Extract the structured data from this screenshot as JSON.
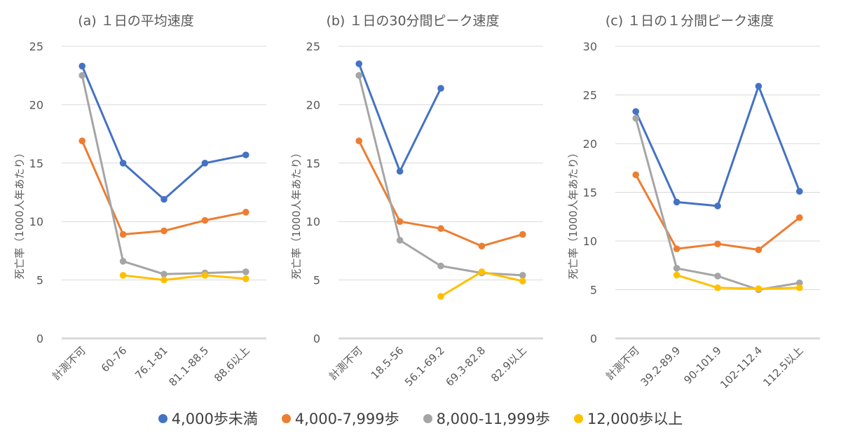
{
  "chart_data": [
    {
      "type": "line",
      "title": "(a) １日の平均速度",
      "ylabel": "死亡率（1000人年あたり）",
      "ylim": [
        0,
        25
      ],
      "yticks": [
        0,
        5,
        10,
        15,
        20,
        25
      ],
      "categories": [
        "計測不可",
        "60-76",
        "76.1-81",
        "81.1-88.5",
        "88.6以上"
      ],
      "series": [
        {
          "name": "4,000歩未満",
          "values": [
            23.3,
            15.0,
            11.9,
            15.0,
            15.7
          ]
        },
        {
          "name": "4,000-7,999歩",
          "values": [
            16.9,
            8.9,
            9.2,
            10.1,
            10.8
          ]
        },
        {
          "name": "8,000-11,999歩",
          "values": [
            22.5,
            6.6,
            5.5,
            5.6,
            5.7
          ]
        },
        {
          "name": "12,000歩以上",
          "values": [
            null,
            5.4,
            5.0,
            5.4,
            5.1
          ]
        }
      ]
    },
    {
      "type": "line",
      "title": "(b) １日の30分間ピーク速度",
      "ylabel": "死亡率（1000人年あたり）",
      "ylim": [
        0,
        25
      ],
      "yticks": [
        0,
        5,
        10,
        15,
        20,
        25
      ],
      "categories": [
        "計測不可",
        "18.5-56",
        "56.1-69.2",
        "69.3-82.8",
        "82.9以上"
      ],
      "series": [
        {
          "name": "4,000歩未満",
          "values": [
            23.5,
            14.3,
            21.4,
            null,
            null
          ]
        },
        {
          "name": "4,000-7,999歩",
          "values": [
            16.9,
            10.0,
            9.4,
            7.9,
            8.9
          ]
        },
        {
          "name": "8,000-11,999歩",
          "values": [
            22.5,
            8.4,
            6.2,
            5.6,
            5.4
          ]
        },
        {
          "name": "12,000歩以上",
          "values": [
            null,
            null,
            3.6,
            5.7,
            4.9
          ]
        }
      ]
    },
    {
      "type": "line",
      "title": "(c) １日の１分間ピーク速度",
      "ylabel": "死亡率（1000人年あたり）",
      "ylim": [
        0,
        30
      ],
      "yticks": [
        0,
        5,
        10,
        15,
        20,
        25,
        30
      ],
      "categories": [
        "計測不可",
        "39.2-89.9",
        "90-101.9",
        "102-112.4",
        "112.5以上"
      ],
      "series": [
        {
          "name": "4,000歩未満",
          "values": [
            23.3,
            14.0,
            13.6,
            25.9,
            15.1
          ]
        },
        {
          "name": "4,000-7,999歩",
          "values": [
            16.8,
            9.2,
            9.7,
            9.1,
            12.4
          ]
        },
        {
          "name": "8,000-11,999歩",
          "values": [
            22.6,
            7.2,
            6.4,
            5.0,
            5.7
          ]
        },
        {
          "name": "12,000歩以上",
          "values": [
            null,
            6.5,
            5.2,
            5.1,
            5.2
          ]
        }
      ]
    }
  ],
  "series_colors": [
    "#4472C4",
    "#ED7D31",
    "#A5A5A5",
    "#FFC000"
  ],
  "legend": {
    "position": "bottom",
    "items": [
      {
        "label": "4,000歩未満",
        "color": "#4472C4"
      },
      {
        "label": "4,000-7,999歩",
        "color": "#ED7D31"
      },
      {
        "label": "8,000-11,999歩",
        "color": "#A5A5A5"
      },
      {
        "label": "12,000歩以上",
        "color": "#FFC000"
      }
    ]
  }
}
